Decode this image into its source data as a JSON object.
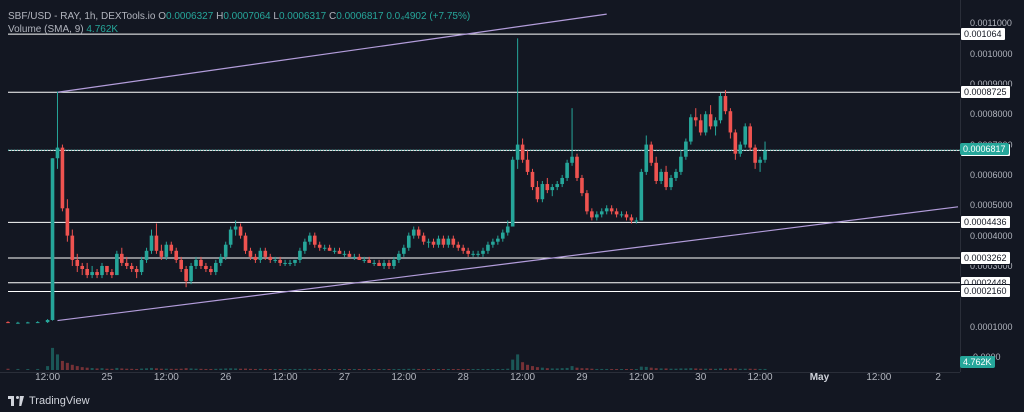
{
  "legend": {
    "symbol": "SBF/USD - RAY, 1h, DEXTools.io",
    "o_label": "O",
    "o_value": "0.0006327",
    "h_label": "H",
    "h_value": "0.0007064",
    "l_label": "L",
    "l_value": "0.0006317",
    "c_label": "C",
    "c_value": "0.0006817",
    "change": "0.0₄4902 (+7.75%)",
    "volume_label": "Volume (SMA, 9)",
    "volume_value": "4.762K"
  },
  "footer": {
    "brand": "TradingView",
    "logo_icon": "tradingview-logo-icon"
  },
  "colors": {
    "background": "#131722",
    "up": "#26a69a",
    "down": "#ef5350",
    "channel": "#b39ddb",
    "level_line": "#ffffff",
    "grid": "#1e222d"
  },
  "price_axis": {
    "ticks": [
      "0.0011000",
      "0.0010000",
      "0.0009000",
      "0.0008000",
      "0.0007000",
      "0.0006000",
      "0.0005000",
      "0.0004000",
      "0.0003000",
      "0.0001000",
      "-0.0000"
    ],
    "tick_values": [
      0.0011,
      0.001,
      0.0009,
      0.0008,
      0.0007,
      0.0006,
      0.0005,
      0.0004,
      0.0003,
      0.0001,
      0.0
    ],
    "level_tags": [
      "0.001064",
      "0.0008725",
      "0.0006808",
      "0.0004436",
      "0.0003262",
      "0.0002448",
      "0.0002160"
    ],
    "level_values": [
      0.001064,
      0.0008725,
      0.0006808,
      0.0004436,
      0.0003262,
      0.0002448,
      0.000216
    ],
    "last_price_tag": "0.0006817",
    "last_price_value": 0.0006817,
    "volume_tag": "4.762K"
  },
  "time_axis": {
    "labels": [
      "12:00",
      "25",
      "12:00",
      "26",
      "12:00",
      "27",
      "12:00",
      "28",
      "12:00",
      "29",
      "12:00",
      "30",
      "12:00",
      "May",
      "12:00",
      "2"
    ],
    "label_hours": [
      12,
      24,
      36,
      48,
      60,
      72,
      84,
      96,
      108,
      120,
      132,
      144,
      156,
      168,
      180,
      192
    ],
    "bold_labels": [
      "May"
    ]
  },
  "chart_data": {
    "type": "candlestick",
    "title": "SBF/USD - RAY, 1h, DEXTools.io",
    "interval": "1h",
    "y_range": [
      0.0,
      0.00116
    ],
    "x_range_hours": [
      4,
      196
    ],
    "horizontal_levels": [
      0.001064,
      0.0008725,
      0.0006808,
      0.0004436,
      0.0003262,
      0.0002448,
      0.000216
    ],
    "channel_lines": [
      {
        "name": "upper",
        "points": [
          [
            14,
            0.0008725
          ],
          [
            125,
            0.00113
          ]
        ]
      },
      {
        "name": "lower",
        "points": [
          [
            14,
            0.00012
          ],
          [
            196,
            0.000495
          ]
        ]
      }
    ],
    "candles_note": "hourly candles from hour 4 to hour 186, approximate values read from chart",
    "candles": [
      [
        4,
        0.000115,
        0.000118,
        0.000112,
        0.000112,
        10
      ],
      [
        6,
        0.000112,
        0.000116,
        0.00011,
        0.000113,
        8
      ],
      [
        8,
        0.000113,
        0.000116,
        0.000111,
        0.000114,
        7
      ],
      [
        10,
        0.000114,
        0.000118,
        0.000112,
        0.000115,
        8
      ],
      [
        12,
        0.000115,
        0.000125,
        0.000112,
        0.000122,
        30
      ],
      [
        13,
        0.000122,
        0.000655,
        0.00012,
        0.000655,
        170
      ],
      [
        14,
        0.000655,
        0.000875,
        0.00062,
        0.00069,
        120
      ],
      [
        15,
        0.00069,
        0.0007,
        0.00048,
        0.00049,
        70
      ],
      [
        16,
        0.00049,
        0.00052,
        0.00038,
        0.0004,
        55
      ],
      [
        17,
        0.0004,
        0.00042,
        0.0003,
        0.00032,
        40
      ],
      [
        18,
        0.00032,
        0.00034,
        0.00028,
        0.0003,
        30
      ],
      [
        19,
        0.0003,
        0.00031,
        0.00027,
        0.00029,
        22
      ],
      [
        20,
        0.00029,
        0.00031,
        0.00026,
        0.00027,
        18
      ],
      [
        21,
        0.00027,
        0.0003,
        0.00026,
        0.00028,
        15
      ],
      [
        22,
        0.00028,
        0.00029,
        0.00026,
        0.00027,
        12
      ],
      [
        23,
        0.00027,
        0.00031,
        0.00026,
        0.0003,
        14
      ],
      [
        24,
        0.0003,
        0.0003,
        0.00027,
        0.00028,
        10
      ],
      [
        25,
        0.00028,
        0.00029,
        0.00026,
        0.00027,
        9
      ],
      [
        26,
        0.00027,
        0.00035,
        0.00027,
        0.00034,
        16
      ],
      [
        27,
        0.00034,
        0.00036,
        0.0003,
        0.00031,
        12
      ],
      [
        28,
        0.00031,
        0.00033,
        0.00029,
        0.0003,
        10
      ],
      [
        29,
        0.0003,
        0.00031,
        0.00028,
        0.00029,
        9
      ],
      [
        30,
        0.00029,
        0.0003,
        0.00026,
        0.00028,
        8
      ],
      [
        31,
        0.00028,
        0.00033,
        0.00027,
        0.00032,
        11
      ],
      [
        32,
        0.00032,
        0.00036,
        0.00031,
        0.00035,
        13
      ],
      [
        33,
        0.00035,
        0.00042,
        0.00034,
        0.0004,
        16
      ],
      [
        34,
        0.0004,
        0.00044,
        0.00034,
        0.00035,
        13
      ],
      [
        35,
        0.00035,
        0.00037,
        0.00032,
        0.00033,
        10
      ],
      [
        36,
        0.00033,
        0.00038,
        0.00032,
        0.00037,
        10
      ],
      [
        37,
        0.00037,
        0.00038,
        0.00034,
        0.00035,
        9
      ],
      [
        38,
        0.00035,
        0.00036,
        0.00031,
        0.00032,
        9
      ],
      [
        39,
        0.00032,
        0.00033,
        0.00028,
        0.00029,
        10
      ],
      [
        40,
        0.00029,
        0.0003,
        0.00023,
        0.00025,
        14
      ],
      [
        41,
        0.00025,
        0.00031,
        0.00024,
        0.0003,
        12
      ],
      [
        42,
        0.0003,
        0.00033,
        0.00029,
        0.00032,
        10
      ],
      [
        43,
        0.00032,
        0.00033,
        0.00029,
        0.0003,
        9
      ],
      [
        44,
        0.0003,
        0.00031,
        0.00028,
        0.00029,
        8
      ],
      [
        45,
        0.00029,
        0.0003,
        0.00027,
        0.00028,
        8
      ],
      [
        46,
        0.00028,
        0.00032,
        0.00027,
        0.00031,
        9
      ],
      [
        47,
        0.00031,
        0.00034,
        0.0003,
        0.00033,
        10
      ],
      [
        48,
        0.00033,
        0.00038,
        0.00032,
        0.00037,
        12
      ],
      [
        49,
        0.00037,
        0.00043,
        0.00036,
        0.00042,
        13
      ],
      [
        50,
        0.00042,
        0.00045,
        0.0004,
        0.00043,
        12
      ],
      [
        51,
        0.00043,
        0.00044,
        0.00039,
        0.0004,
        10
      ],
      [
        52,
        0.0004,
        0.00041,
        0.00034,
        0.00035,
        11
      ],
      [
        53,
        0.00035,
        0.00036,
        0.00032,
        0.00033,
        9
      ],
      [
        54,
        0.00033,
        0.00034,
        0.00031,
        0.00032,
        8
      ],
      [
        55,
        0.00032,
        0.00036,
        0.00031,
        0.00035,
        9
      ],
      [
        56,
        0.00035,
        0.00036,
        0.00032,
        0.00033,
        8
      ],
      [
        57,
        0.00033,
        0.00034,
        0.00031,
        0.00032,
        7
      ],
      [
        58,
        0.00032,
        0.00033,
        0.00031,
        0.00032,
        7
      ],
      [
        59,
        0.00032,
        0.00033,
        0.0003,
        0.00031,
        7
      ],
      [
        60,
        0.00031,
        0.00032,
        0.0003,
        0.00031,
        6
      ],
      [
        61,
        0.00031,
        0.00032,
        0.0003,
        0.00031,
        6
      ],
      [
        62,
        0.00031,
        0.00032,
        0.0003,
        0.00032,
        6
      ],
      [
        63,
        0.00032,
        0.00036,
        0.00031,
        0.00035,
        8
      ],
      [
        64,
        0.00035,
        0.00039,
        0.00034,
        0.00038,
        9
      ],
      [
        65,
        0.00038,
        0.00041,
        0.00037,
        0.0004,
        9
      ],
      [
        66,
        0.0004,
        0.00041,
        0.00036,
        0.00037,
        8
      ],
      [
        67,
        0.00037,
        0.00038,
        0.00035,
        0.00036,
        7
      ],
      [
        68,
        0.00036,
        0.00037,
        0.00035,
        0.00036,
        6
      ],
      [
        69,
        0.00036,
        0.00037,
        0.00035,
        0.00035,
        6
      ],
      [
        70,
        0.00035,
        0.00036,
        0.00034,
        0.00035,
        6
      ],
      [
        71,
        0.00035,
        0.00036,
        0.00034,
        0.00034,
        6
      ],
      [
        72,
        0.00034,
        0.00035,
        0.00033,
        0.00034,
        6
      ],
      [
        73,
        0.00034,
        0.00035,
        0.00033,
        0.00033,
        6
      ],
      [
        74,
        0.00033,
        0.00034,
        0.00032,
        0.00033,
        5
      ],
      [
        75,
        0.00033,
        0.00034,
        0.00032,
        0.00032,
        5
      ],
      [
        76,
        0.00032,
        0.00033,
        0.00031,
        0.00032,
        5
      ],
      [
        77,
        0.00032,
        0.00033,
        0.00031,
        0.00031,
        5
      ],
      [
        78,
        0.00031,
        0.00032,
        0.0003,
        0.00031,
        5
      ],
      [
        79,
        0.00031,
        0.00032,
        0.0003,
        0.0003,
        5
      ],
      [
        80,
        0.0003,
        0.00032,
        0.00029,
        0.00031,
        5
      ],
      [
        81,
        0.00031,
        0.00032,
        0.00029,
        0.0003,
        5
      ],
      [
        82,
        0.0003,
        0.00033,
        0.00029,
        0.00032,
        6
      ],
      [
        83,
        0.00032,
        0.00035,
        0.00031,
        0.00034,
        7
      ],
      [
        84,
        0.00034,
        0.00037,
        0.00033,
        0.00036,
        8
      ],
      [
        85,
        0.00036,
        0.00041,
        0.00035,
        0.0004,
        9
      ],
      [
        86,
        0.0004,
        0.00043,
        0.00039,
        0.00042,
        9
      ],
      [
        87,
        0.00042,
        0.00043,
        0.00039,
        0.0004,
        8
      ],
      [
        88,
        0.0004,
        0.00041,
        0.00037,
        0.00038,
        7
      ],
      [
        89,
        0.00038,
        0.00039,
        0.00036,
        0.00038,
        6
      ],
      [
        90,
        0.00038,
        0.00039,
        0.00036,
        0.00037,
        6
      ],
      [
        91,
        0.00037,
        0.0004,
        0.00036,
        0.00039,
        6
      ],
      [
        92,
        0.00039,
        0.0004,
        0.00036,
        0.00037,
        6
      ],
      [
        93,
        0.00037,
        0.0004,
        0.00036,
        0.00039,
        6
      ],
      [
        94,
        0.00039,
        0.0004,
        0.00036,
        0.00037,
        6
      ],
      [
        95,
        0.00037,
        0.00038,
        0.00035,
        0.00036,
        5
      ],
      [
        96,
        0.00036,
        0.00037,
        0.00034,
        0.00035,
        5
      ],
      [
        97,
        0.00035,
        0.00036,
        0.00033,
        0.00034,
        5
      ],
      [
        98,
        0.00034,
        0.00035,
        0.00033,
        0.00034,
        5
      ],
      [
        99,
        0.00034,
        0.00035,
        0.00033,
        0.00034,
        5
      ],
      [
        100,
        0.00034,
        0.00036,
        0.00033,
        0.00035,
        6
      ],
      [
        101,
        0.00035,
        0.00038,
        0.00034,
        0.00037,
        7
      ],
      [
        102,
        0.00037,
        0.00039,
        0.00036,
        0.00038,
        7
      ],
      [
        103,
        0.00038,
        0.0004,
        0.00037,
        0.00039,
        7
      ],
      [
        104,
        0.00039,
        0.00042,
        0.00038,
        0.00041,
        8
      ],
      [
        105,
        0.00041,
        0.00045,
        0.0004,
        0.00043,
        10
      ],
      [
        106,
        0.00043,
        0.00066,
        0.00043,
        0.00065,
        80
      ],
      [
        107,
        0.00065,
        0.00105,
        0.00062,
        0.0007,
        120
      ],
      [
        108,
        0.0007,
        0.00072,
        0.00064,
        0.00065,
        60
      ],
      [
        109,
        0.00065,
        0.00068,
        0.0006,
        0.00061,
        40
      ],
      [
        110,
        0.00061,
        0.00062,
        0.00055,
        0.00056,
        30
      ],
      [
        111,
        0.00056,
        0.00058,
        0.00051,
        0.00052,
        22
      ],
      [
        112,
        0.00052,
        0.00058,
        0.00051,
        0.00057,
        18
      ],
      [
        113,
        0.00057,
        0.00059,
        0.00054,
        0.00055,
        14
      ],
      [
        114,
        0.00055,
        0.00057,
        0.00053,
        0.00056,
        12
      ],
      [
        115,
        0.00056,
        0.00058,
        0.00055,
        0.00057,
        12
      ],
      [
        116,
        0.00057,
        0.0006,
        0.00056,
        0.00059,
        14
      ],
      [
        117,
        0.00059,
        0.00065,
        0.00058,
        0.00064,
        16
      ],
      [
        118,
        0.00064,
        0.00082,
        0.00063,
        0.00066,
        30
      ],
      [
        119,
        0.00066,
        0.00067,
        0.00058,
        0.00059,
        18
      ],
      [
        120,
        0.00059,
        0.0006,
        0.00053,
        0.00054,
        14
      ],
      [
        121,
        0.00054,
        0.00055,
        0.00047,
        0.00048,
        14
      ],
      [
        122,
        0.00048,
        0.00049,
        0.00045,
        0.00046,
        10
      ],
      [
        123,
        0.00046,
        0.00048,
        0.00045,
        0.00047,
        8
      ],
      [
        124,
        0.00047,
        0.00049,
        0.00046,
        0.00048,
        8
      ],
      [
        125,
        0.00048,
        0.0005,
        0.00047,
        0.00049,
        8
      ],
      [
        126,
        0.00049,
        0.0005,
        0.00047,
        0.00048,
        7
      ],
      [
        127,
        0.00048,
        0.00049,
        0.00046,
        0.00047,
        6
      ],
      [
        128,
        0.00047,
        0.00048,
        0.00046,
        0.00047,
        6
      ],
      [
        129,
        0.00047,
        0.00048,
        0.00045,
        0.00046,
        6
      ],
      [
        130,
        0.00046,
        0.00047,
        0.00044,
        0.00045,
        6
      ],
      [
        131,
        0.00045,
        0.00046,
        0.00044,
        0.00045,
        6
      ],
      [
        132,
        0.00045,
        0.00062,
        0.00045,
        0.00061,
        26
      ],
      [
        133,
        0.00061,
        0.00073,
        0.0006,
        0.0007,
        24
      ],
      [
        134,
        0.0007,
        0.00071,
        0.00063,
        0.00064,
        18
      ],
      [
        135,
        0.00064,
        0.00066,
        0.00057,
        0.00058,
        14
      ],
      [
        136,
        0.00058,
        0.00062,
        0.00057,
        0.00061,
        12
      ],
      [
        137,
        0.00061,
        0.00063,
        0.00055,
        0.00056,
        12
      ],
      [
        138,
        0.00056,
        0.0006,
        0.00055,
        0.00059,
        10
      ],
      [
        139,
        0.00059,
        0.00062,
        0.00058,
        0.00061,
        10
      ],
      [
        140,
        0.00061,
        0.00068,
        0.0006,
        0.00066,
        12
      ],
      [
        141,
        0.00066,
        0.00072,
        0.00065,
        0.00071,
        12
      ],
      [
        142,
        0.00071,
        0.0008,
        0.0007,
        0.00079,
        14
      ],
      [
        143,
        0.00079,
        0.00082,
        0.00076,
        0.00078,
        12
      ],
      [
        144,
        0.00078,
        0.0008,
        0.00073,
        0.00074,
        10
      ],
      [
        145,
        0.00074,
        0.00081,
        0.00073,
        0.0008,
        10
      ],
      [
        146,
        0.0008,
        0.00083,
        0.00075,
        0.00076,
        10
      ],
      [
        147,
        0.00076,
        0.00079,
        0.00073,
        0.00078,
        9
      ],
      [
        148,
        0.00078,
        0.00087,
        0.00077,
        0.00086,
        12
      ],
      [
        149,
        0.00086,
        0.00088,
        0.0008,
        0.00081,
        10
      ],
      [
        150,
        0.00081,
        0.00082,
        0.00072,
        0.00074,
        12
      ],
      [
        151,
        0.00074,
        0.00075,
        0.00065,
        0.00067,
        12
      ],
      [
        152,
        0.00067,
        0.00071,
        0.00066,
        0.0007,
        9
      ],
      [
        153,
        0.0007,
        0.00077,
        0.00069,
        0.00076,
        10
      ],
      [
        154,
        0.00076,
        0.00077,
        0.00068,
        0.00069,
        10
      ],
      [
        155,
        0.00069,
        0.0007,
        0.00062,
        0.00064,
        9
      ],
      [
        156,
        0.00064,
        0.00066,
        0.00061,
        0.00065,
        8
      ],
      [
        157,
        0.00065,
        0.00071,
        0.00064,
        0.00068,
        8
      ]
    ]
  }
}
